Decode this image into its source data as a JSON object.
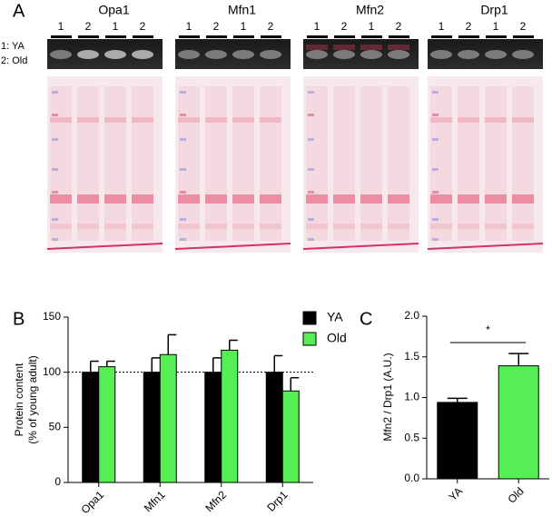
{
  "panel_labels": [
    "A",
    "B",
    "C"
  ],
  "blots": {
    "legend": [
      "1: YA",
      "2: Old"
    ],
    "proteins": [
      {
        "name": "Opa1",
        "lanes": [
          "1",
          "2",
          "1",
          "2"
        ]
      },
      {
        "name": "Mfn1",
        "lanes": [
          "1",
          "2",
          "1",
          "2"
        ]
      },
      {
        "name": "Mfn2",
        "lanes": [
          "1",
          "2",
          "1",
          "2"
        ]
      },
      {
        "name": "Drp1",
        "lanes": [
          "1",
          "2",
          "1",
          "2"
        ]
      }
    ]
  },
  "chart_data": [
    {
      "type": "bar",
      "ylabel": [
        "Protein content",
        "(% of young adult)"
      ],
      "categories": [
        "Opa1",
        "Mfn1",
        "Mfn2",
        "Drp1"
      ],
      "series": [
        {
          "name": "YA",
          "color": "#000000",
          "values": [
            100,
            100,
            100,
            100
          ],
          "errors": [
            10,
            13,
            13,
            15
          ]
        },
        {
          "name": "Old",
          "color": "#55ee55",
          "values": [
            105,
            116,
            120,
            83
          ],
          "errors": [
            5,
            18,
            9,
            12
          ]
        }
      ],
      "ylim": [
        0,
        150
      ],
      "yticks": [
        0,
        50,
        100,
        150
      ],
      "reference_line": 100
    },
    {
      "type": "bar",
      "ylabel": "Mfn2 / Drp1 (A.U.)",
      "categories": [
        "YA",
        "Old"
      ],
      "values": [
        0.94,
        1.39
      ],
      "errors": [
        0.05,
        0.15
      ],
      "colors": [
        "#000000",
        "#55ee55"
      ],
      "ylim": [
        0,
        2
      ],
      "yticks": [
        {
          "value": 0,
          "label": "0.0"
        },
        {
          "value": 0.5,
          "label": "0.5"
        },
        {
          "value": 1,
          "label": "1.0"
        },
        {
          "value": 1.5,
          "label": "1.5"
        },
        {
          "value": 2,
          "label": "2.0"
        }
      ],
      "annotation": "*"
    }
  ]
}
